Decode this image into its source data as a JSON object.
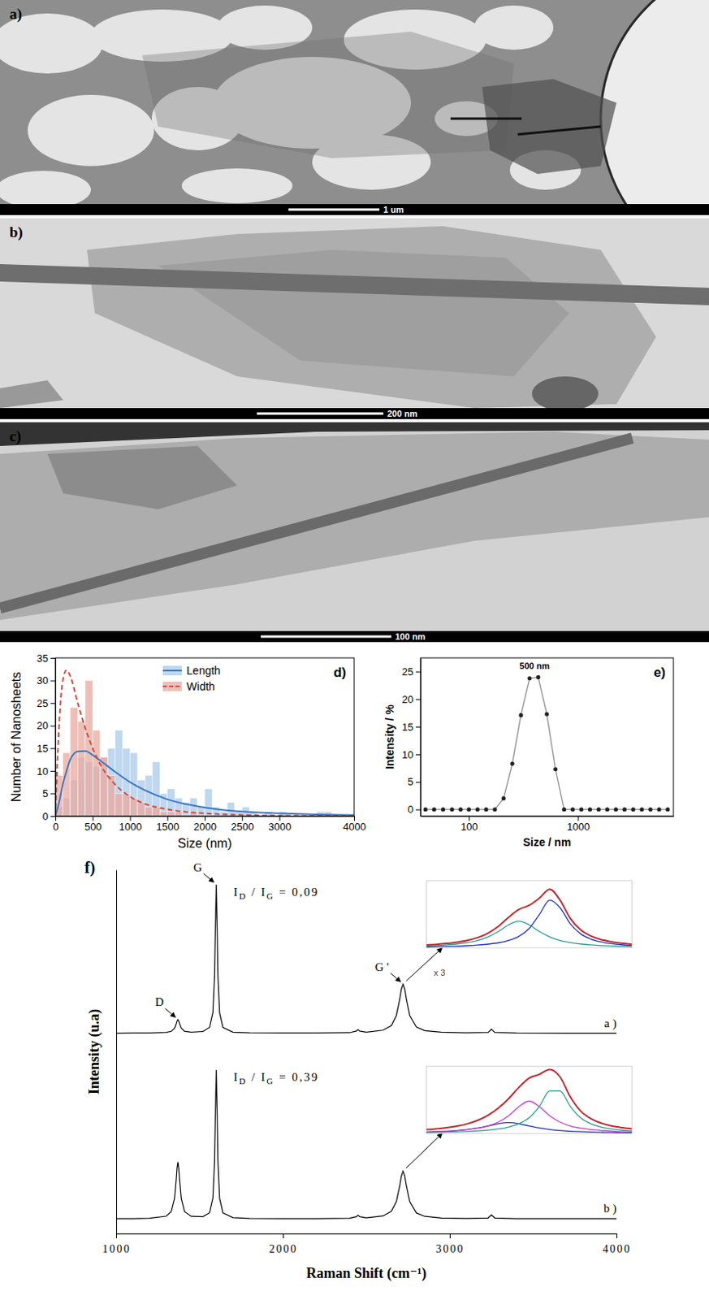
{
  "images": [
    {
      "label": "a)",
      "scale_bar": "1 um"
    },
    {
      "label": "b)",
      "scale_bar": "200 nm"
    },
    {
      "label": "c)",
      "scale_bar": "100 nm"
    }
  ],
  "chart_data": [
    {
      "type": "histogram",
      "title": "d)",
      "xlabel": "Size (nm)",
      "ylabel": "Number of Nanosheets",
      "legend": "upper center",
      "xlim": [
        0,
        4000
      ],
      "xticks": [
        0,
        500,
        1000,
        1500,
        2000,
        2500,
        3000,
        4000
      ],
      "ylim": [
        0,
        35
      ],
      "yticks": [
        0,
        5,
        10,
        15,
        20,
        25,
        30,
        35
      ],
      "bins": [
        0,
        100,
        200,
        300,
        400,
        500,
        600,
        700,
        800,
        900,
        1000,
        1100,
        1200,
        1300,
        1400,
        1500,
        1600,
        1700,
        1800,
        1900,
        2000,
        2100,
        2200,
        2300,
        2400,
        2500,
        2600,
        2700,
        2800,
        2900,
        3000,
        3100,
        3200,
        3300,
        3400,
        3500,
        3600,
        3700,
        3800,
        3900,
        4000
      ],
      "series": [
        {
          "name": "Length",
          "color": "#a9c9ea",
          "values": [
            2,
            4,
            8,
            13,
            12,
            11,
            13,
            15,
            19,
            15,
            14,
            8,
            9,
            12,
            5,
            6,
            4,
            3,
            4,
            2,
            6,
            2,
            1,
            3,
            1,
            2,
            1,
            0,
            1,
            0,
            1,
            0,
            0,
            0,
            0,
            1,
            1,
            0,
            0,
            0
          ],
          "fit": {
            "color": "#3b78c4",
            "line_style": "solid",
            "x": [
              0,
              50,
              100,
              150,
              200,
              300,
              400,
              500,
              600,
              800,
              1000,
              1200,
              1500,
              2000,
              2500,
              3000,
              3500,
              4000
            ],
            "values": [
              0,
              3,
              7,
              10,
              12.5,
              14.3,
              14.4,
              13.5,
              12.3,
              9.8,
              7.5,
              5.7,
              3.7,
              1.9,
              1.0,
              0.6,
              0.35,
              0.2
            ]
          }
        },
        {
          "name": "Width",
          "color": "#eaa99f",
          "values": [
            9,
            14,
            24,
            21,
            30,
            19,
            13,
            9,
            5,
            5,
            4,
            3,
            2,
            2,
            1,
            1,
            1,
            0,
            1,
            0,
            0,
            0,
            0,
            0,
            0,
            0,
            0,
            0,
            0,
            0,
            0,
            0,
            0,
            0,
            0,
            0,
            0,
            0,
            0,
            0
          ],
          "fit": {
            "color": "#d04a3e",
            "line_style": "dashed",
            "x": [
              0,
              50,
              100,
              150,
              200,
              300,
              400,
              500,
              600,
              800,
              1000,
              1200,
              1500,
              2000,
              2500,
              3000,
              3500,
              4000
            ],
            "values": [
              0,
              20,
              30,
              32.3,
              31,
              25,
              19.5,
              15,
              11.5,
              7,
              4.3,
              2.7,
              1.5,
              0.6,
              0.25,
              0.1,
              0.05,
              0
            ]
          }
        }
      ]
    },
    {
      "type": "line",
      "title": "e)",
      "xlabel": "Size / nm",
      "ylabel": "Intensity / %",
      "log": "x",
      "xlim": [
        36,
        7500
      ],
      "xticks": [
        100,
        1000
      ],
      "ylim": [
        -1.2,
        27.5
      ],
      "yticks": [
        0,
        5,
        10,
        15,
        20,
        25
      ],
      "x": [
        40,
        48,
        58,
        70,
        84,
        100,
        120,
        144,
        173,
        208,
        250,
        300,
        360,
        432,
        518,
        622,
        746,
        895,
        1074,
        1289,
        1547,
        1856,
        2228,
        2673,
        3208,
        3850,
        4620,
        5544,
        6650
      ],
      "series": [
        {
          "color": "#8c8c8c",
          "marker": "circle",
          "values": [
            0,
            0,
            0,
            0,
            0,
            0,
            0,
            0,
            0,
            2,
            8.3,
            17.1,
            23.8,
            24,
            17.3,
            7.3,
            0,
            0,
            0,
            0,
            0,
            0,
            0,
            0,
            0,
            0,
            0,
            0,
            0
          ]
        }
      ],
      "annotations": [
        {
          "text": "500 nm",
          "x": 400,
          "y": 24
        }
      ]
    },
    {
      "type": "line",
      "title": "f)",
      "xlabel": "Raman Shift (cm⁻¹)",
      "ylabel": "Intensity (u.a)",
      "tick_labels": "x",
      "xlim": [
        1000,
        4000
      ],
      "xticks": [
        1000,
        2000,
        3000,
        4000
      ],
      "ylim": [
        0,
        2.45
      ],
      "x": [
        1000,
        1100,
        1200,
        1300,
        1330,
        1350,
        1360,
        1365,
        1370,
        1375,
        1380,
        1390,
        1410,
        1450,
        1520,
        1560,
        1580,
        1590,
        1595,
        1600,
        1605,
        1610,
        1620,
        1640,
        1700,
        1800,
        2000,
        2200,
        2400,
        2440,
        2450,
        2460,
        2500,
        2600,
        2650,
        2680,
        2700,
        2710,
        2720,
        2730,
        2740,
        2760,
        2800,
        2850,
        2950,
        3100,
        3230,
        3250,
        3270,
        3400,
        3700,
        4000
      ],
      "series": [
        {
          "name": "a )",
          "color": "#000000",
          "values": [
            1.35,
            1.351,
            1.351,
            1.355,
            1.362,
            1.383,
            1.413,
            1.432,
            1.441,
            1.432,
            1.414,
            1.384,
            1.363,
            1.356,
            1.361,
            1.389,
            1.489,
            1.74,
            2.07,
            2.35,
            2.07,
            1.74,
            1.488,
            1.388,
            1.356,
            1.352,
            1.351,
            1.351,
            1.353,
            1.364,
            1.374,
            1.364,
            1.356,
            1.37,
            1.401,
            1.469,
            1.578,
            1.647,
            1.68,
            1.647,
            1.578,
            1.469,
            1.391,
            1.367,
            1.356,
            1.352,
            1.355,
            1.376,
            1.355,
            1.351,
            1.35,
            1.35
          ],
          "annotations": [
            {
              "text": "D",
              "x": 1370
            },
            {
              "text": "G",
              "x": 1600
            },
            {
              "text": "G '",
              "x": 2720
            }
          ],
          "ratio_label": "ID / IG = 0,09",
          "inset": {
            "xlim": [
              2600,
              2800
            ],
            "ylim": [
              0,
              1.25
            ],
            "tick_labels": false,
            "annotations": [
              "x 3"
            ],
            "x": [
              2600,
              2610,
              2620,
              2630,
              2640,
              2650,
              2660,
              2670,
              2680,
              2690,
              2700,
              2710,
              2720,
              2730,
              2740,
              2750,
              2760,
              2770,
              2780,
              2790,
              2800
            ],
            "series": [
              {
                "color": "#2a9d8f",
                "values": [
                  0.036,
                  0.044,
                  0.057,
                  0.074,
                  0.1,
                  0.14,
                  0.205,
                  0.305,
                  0.431,
                  0.5,
                  0.431,
                  0.305,
                  0.205,
                  0.14,
                  0.1,
                  0.074,
                  0.057,
                  0.044,
                  0.036,
                  0.029,
                  0.025
                ]
              },
              {
                "color": "#2233bb",
                "values": [
                  0.019,
                  0.023,
                  0.027,
                  0.033,
                  0.041,
                  0.053,
                  0.07,
                  0.096,
                  0.14,
                  0.216,
                  0.361,
                  0.623,
                  0.889,
                  0.751,
                  0.45,
                  0.263,
                  0.165,
                  0.111,
                  0.079,
                  0.059,
                  0.045
                ]
              },
              {
                "color": "#c0282d",
                "values": [
                  0.055,
                  0.067,
                  0.084,
                  0.107,
                  0.141,
                  0.193,
                  0.275,
                  0.401,
                  0.571,
                  0.716,
                  0.792,
                  0.928,
                  1.094,
                  0.891,
                  0.55,
                  0.337,
                  0.222,
                  0.155,
                  0.115,
                  0.088,
                  0.07
                ]
              }
            ]
          }
        },
        {
          "name": "b )",
          "color": "#000000",
          "values": [
            0.101,
            0.101,
            0.103,
            0.117,
            0.148,
            0.238,
            0.364,
            0.443,
            0.481,
            0.443,
            0.364,
            0.238,
            0.148,
            0.116,
            0.114,
            0.14,
            0.24,
            0.492,
            0.822,
            1.101,
            0.822,
            0.491,
            0.239,
            0.139,
            0.107,
            0.102,
            0.101,
            0.101,
            0.103,
            0.114,
            0.124,
            0.114,
            0.106,
            0.119,
            0.15,
            0.215,
            0.321,
            0.388,
            0.42,
            0.388,
            0.321,
            0.215,
            0.139,
            0.116,
            0.105,
            0.102,
            0.105,
            0.126,
            0.105,
            0.101,
            0.1,
            0.1
          ],
          "ratio_label": "ID / IG = 0,39",
          "inset": {
            "xlim": [
              2600,
              2800
            ],
            "ylim": [
              0,
              1.25
            ],
            "tick_labels": false,
            "x": [
              2600,
              2610,
              2620,
              2630,
              2640,
              2650,
              2660,
              2670,
              2680,
              2690,
              2700,
              2710,
              2720,
              2730,
              2740,
              2750,
              2760,
              2770,
              2780,
              2790,
              2800
            ],
            "series": [
              {
                "color": "#2233bb",
                "values": [
                  0.025,
                  0.031,
                  0.04,
                  0.053,
                  0.072,
                  0.1,
                  0.138,
                  0.18,
                  0.2,
                  0.18,
                  0.138,
                  0.1,
                  0.072,
                  0.053,
                  0.04,
                  0.031,
                  0.025,
                  0.02,
                  0.016,
                  0.014,
                  0.012
                ]
              },
              {
                "color": "#c23fd0",
                "values": [
                  0.028,
                  0.034,
                  0.042,
                  0.054,
                  0.071,
                  0.097,
                  0.139,
                  0.21,
                  0.328,
                  0.497,
                  0.6,
                  0.497,
                  0.328,
                  0.21,
                  0.139,
                  0.097,
                  0.071,
                  0.054,
                  0.042,
                  0.034,
                  0.028
                ]
              },
              {
                "color": "#2a9d8f",
                "values": [
                  0.017,
                  0.02,
                  0.024,
                  0.029,
                  0.036,
                  0.046,
                  0.06,
                  0.082,
                  0.117,
                  0.178,
                  0.29,
                  0.502,
                  0.789,
                  0.789,
                  0.502,
                  0.29,
                  0.178,
                  0.117,
                  0.082,
                  0.06,
                  0.046
                ]
              },
              {
                "color": "#c0282d",
                "values": [
                  0.07,
                  0.085,
                  0.106,
                  0.136,
                  0.179,
                  0.243,
                  0.337,
                  0.472,
                  0.645,
                  0.855,
                  1.028,
                  1.099,
                  1.189,
                  1.052,
                  0.681,
                  0.418,
                  0.274,
                  0.191,
                  0.14,
                  0.108,
                  0.086
                ]
              }
            ]
          }
        }
      ]
    }
  ]
}
